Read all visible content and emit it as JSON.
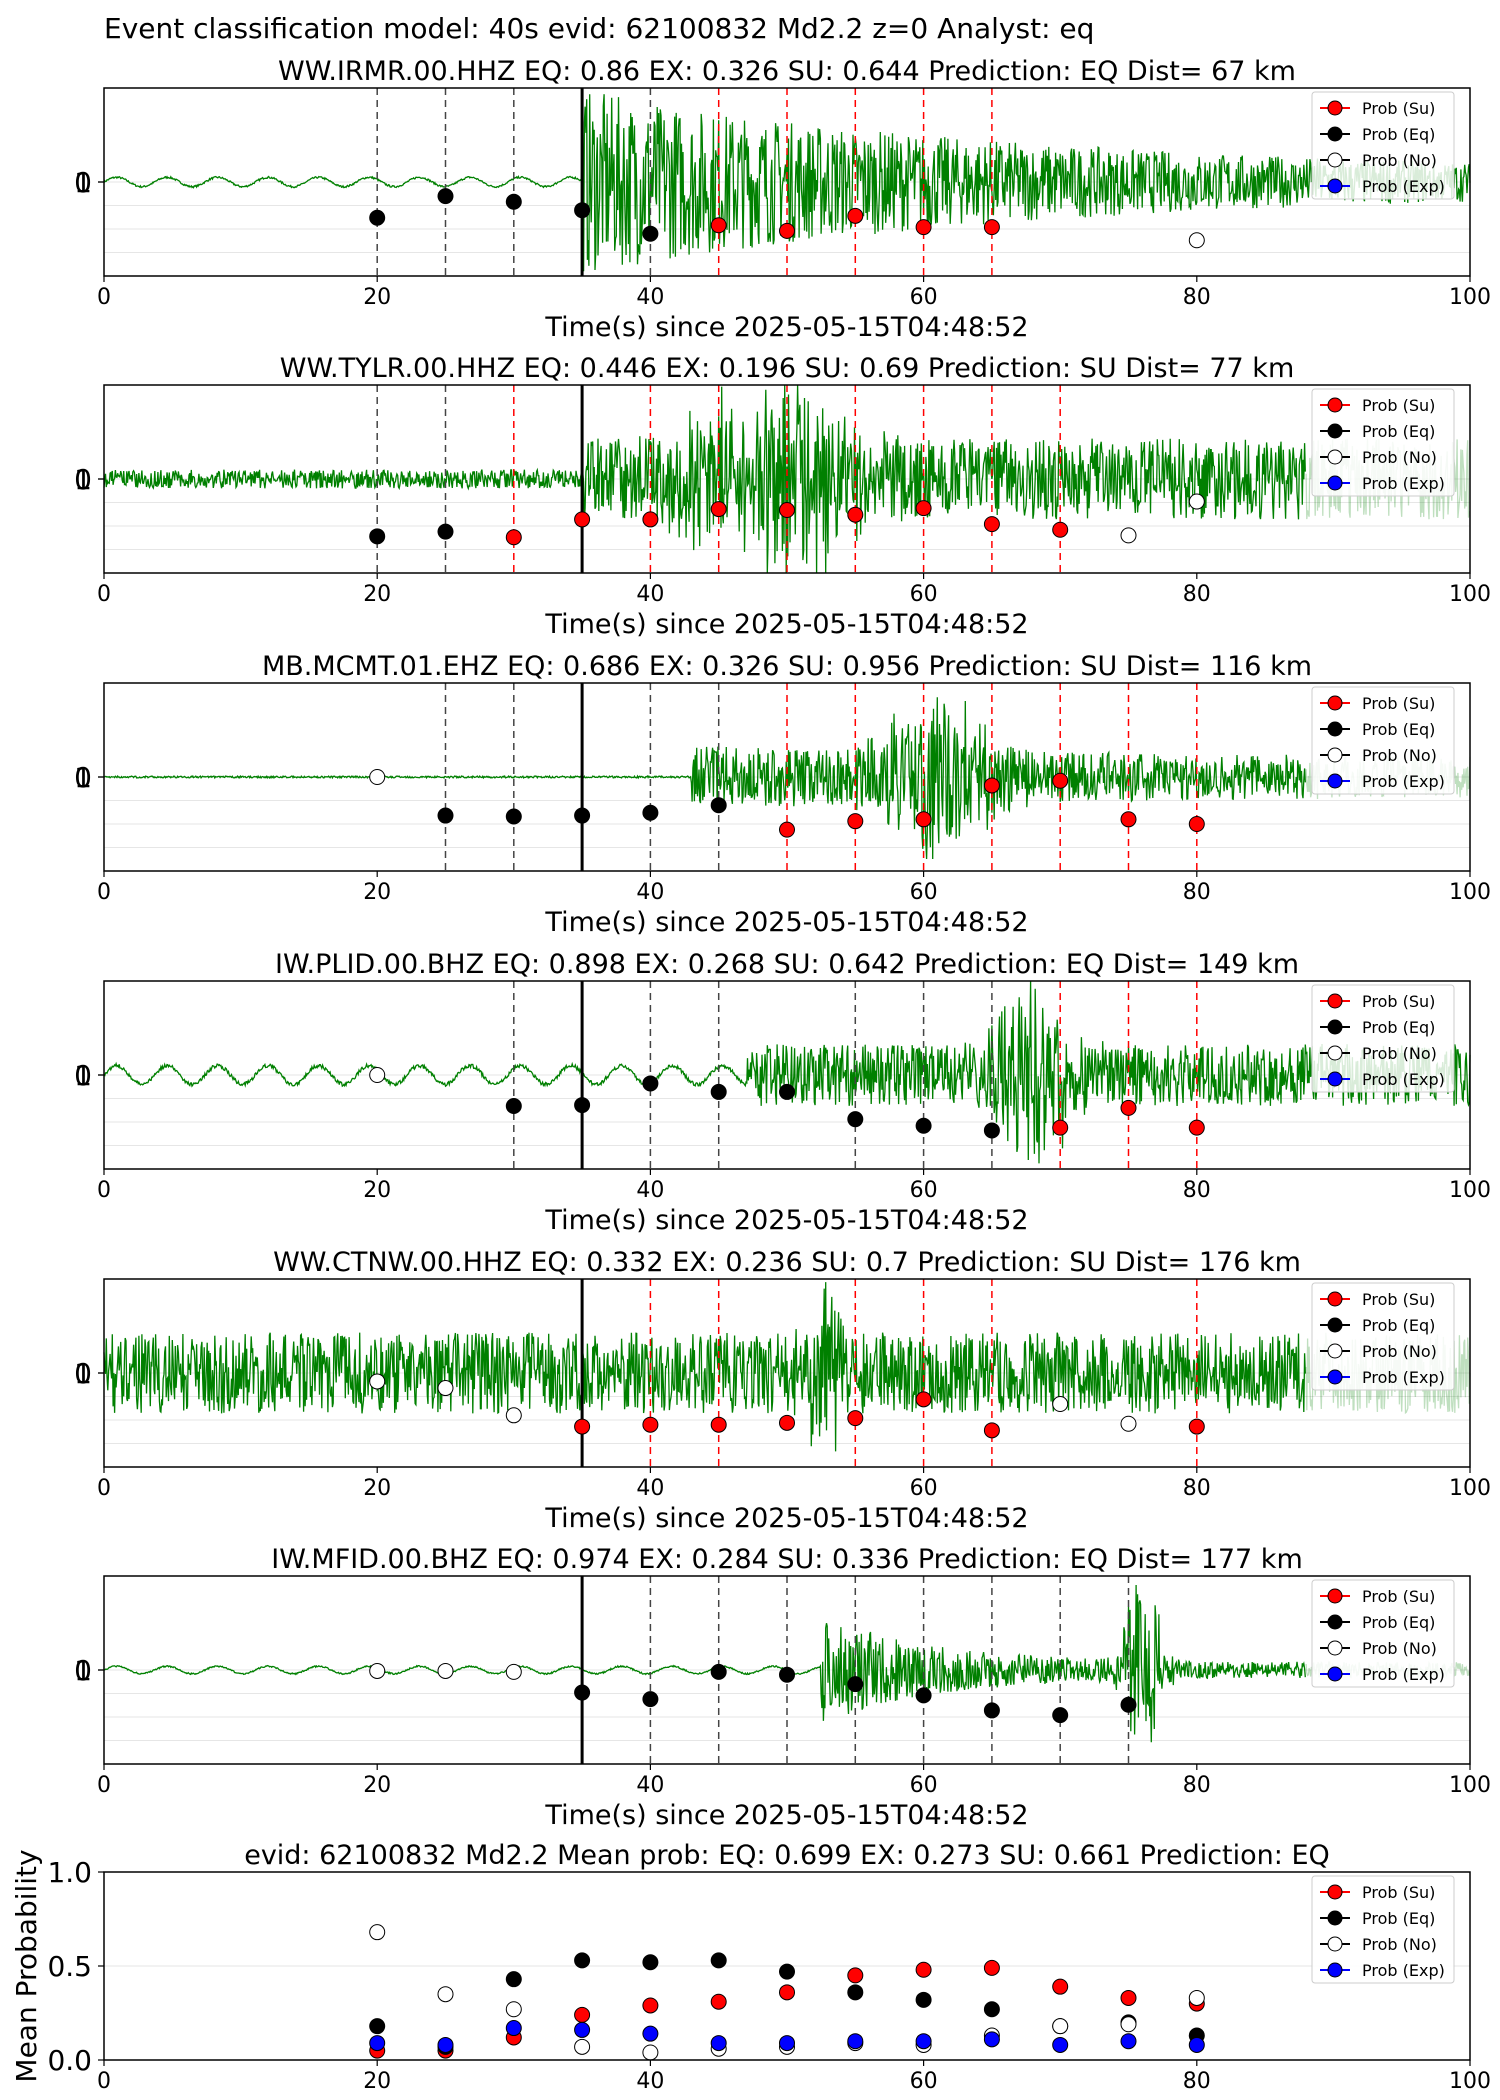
{
  "figure": {
    "suptitle": "Event classification model: 40s evid: 62100832 Md2.2 z=0 Analyst: eq"
  },
  "legend_labels": [
    "Prob (Su)",
    "Prob (Eq)",
    "Prob (No)",
    "Prob (Exp)"
  ],
  "colors": {
    "su": "#ff0000",
    "eq": "#000000",
    "no": "#ffffff",
    "exp": "#0000ff",
    "waveform": "#008000",
    "su_line": "#ff0000",
    "eq_line": "#000000"
  },
  "chart_data": [
    {
      "type": "scatter",
      "station": "WW.IRMR.00.HHZ",
      "title": "WW.IRMR.00.HHZ   EQ: 0.86   EX: 0.326   SU: 0.644   Prediction: EQ    Dist= 67 km",
      "xlabel": "Time(s) since 2025-05-15T04:48:52",
      "xlim": [
        0,
        100
      ],
      "xticks": [
        "0",
        "20",
        "40",
        "60",
        "80",
        "100"
      ],
      "yticks": [
        "0",
        "1"
      ],
      "arrival_time": 35,
      "waveform": {
        "onset": 35,
        "post_amp": 0.9,
        "decay": 0.03,
        "pre_amp": 0.05,
        "pre_style": "smooth",
        "bursts": [],
        "tail_light_from": null
      },
      "windows_eq": [
        20,
        25,
        30,
        35,
        40
      ],
      "windows_su": [
        45,
        50,
        55,
        60,
        65
      ],
      "points": [
        {
          "t": 20,
          "class": "eq",
          "p": 0.62
        },
        {
          "t": 25,
          "class": "eq",
          "p": 0.85
        },
        {
          "t": 30,
          "class": "eq",
          "p": 0.79
        },
        {
          "t": 35,
          "class": "eq",
          "p": 0.7
        },
        {
          "t": 40,
          "class": "eq",
          "p": 0.45
        },
        {
          "t": 45,
          "class": "su",
          "p": 0.54
        },
        {
          "t": 50,
          "class": "su",
          "p": 0.48
        },
        {
          "t": 55,
          "class": "su",
          "p": 0.64
        },
        {
          "t": 60,
          "class": "su",
          "p": 0.52
        },
        {
          "t": 65,
          "class": "su",
          "p": 0.52
        },
        {
          "t": 80,
          "class": "no",
          "p": 0.38
        }
      ]
    },
    {
      "type": "scatter",
      "station": "WW.TYLR.00.HHZ",
      "title": "WW.TYLR.00.HHZ   EQ: 0.446  EX: 0.196  SU: 0.69   Prediction: SU    Dist= 77 km",
      "xlabel": "Time(s) since 2025-05-15T04:48:52",
      "xlim": [
        0,
        100
      ],
      "xticks": [
        "0",
        "20",
        "40",
        "60",
        "80",
        "100"
      ],
      "yticks": [
        "0",
        "1"
      ],
      "arrival_time": 35,
      "waveform": {
        "onset": 35,
        "post_amp": 0.35,
        "decay": 0.0,
        "pre_amp": 0.1,
        "pre_style": "noisy",
        "bursts": [
          {
            "center": 50,
            "width": 5,
            "amp": 0.9
          },
          {
            "center": 44,
            "width": 3,
            "amp": 0.4
          }
        ],
        "tail_light_from": 88
      },
      "windows_eq": [
        20,
        25
      ],
      "windows_su": [
        30,
        40,
        45,
        50,
        55,
        60,
        65,
        70
      ],
      "points": [
        {
          "t": 20,
          "class": "eq",
          "p": 0.39
        },
        {
          "t": 25,
          "class": "eq",
          "p": 0.44
        },
        {
          "t": 30,
          "class": "su",
          "p": 0.38
        },
        {
          "t": 35,
          "class": "su",
          "p": 0.57
        },
        {
          "t": 40,
          "class": "su",
          "p": 0.57
        },
        {
          "t": 45,
          "class": "su",
          "p": 0.68
        },
        {
          "t": 50,
          "class": "su",
          "p": 0.67
        },
        {
          "t": 55,
          "class": "su",
          "p": 0.62
        },
        {
          "t": 60,
          "class": "su",
          "p": 0.69
        },
        {
          "t": 65,
          "class": "su",
          "p": 0.52
        },
        {
          "t": 70,
          "class": "su",
          "p": 0.46
        },
        {
          "t": 75,
          "class": "no",
          "p": 0.4
        },
        {
          "t": 80,
          "class": "no",
          "p": 0.76
        }
      ]
    },
    {
      "type": "scatter",
      "station": "MB.MCMT.01.EHZ",
      "title": "MB.MCMT.01.EHZ   EQ: 0.686  EX: 0.326  SU: 0.956   Prediction: SU    Dist= 116 km",
      "xlabel": "Time(s) since 2025-05-15T04:48:52",
      "xlim": [
        0,
        100
      ],
      "xticks": [
        "0",
        "20",
        "40",
        "60",
        "80",
        "100"
      ],
      "yticks": [
        "0",
        "1"
      ],
      "arrival_time": 35,
      "waveform": {
        "onset": 43,
        "post_amp": 0.25,
        "decay": 0.01,
        "pre_amp": 0.01,
        "pre_style": "flat",
        "bursts": [
          {
            "center": 61,
            "width": 4,
            "amp": 0.8
          }
        ],
        "tail_light_from": 88
      },
      "windows_eq": [
        25,
        30,
        40,
        45
      ],
      "windows_su": [
        50,
        55,
        60,
        65,
        70,
        75,
        80
      ],
      "points": [
        {
          "t": 20,
          "class": "no",
          "p": 1.0
        },
        {
          "t": 25,
          "class": "eq",
          "p": 0.59
        },
        {
          "t": 30,
          "class": "eq",
          "p": 0.58
        },
        {
          "t": 35,
          "class": "eq",
          "p": 0.59
        },
        {
          "t": 40,
          "class": "eq",
          "p": 0.62
        },
        {
          "t": 45,
          "class": "eq",
          "p": 0.7
        },
        {
          "t": 50,
          "class": "su",
          "p": 0.44
        },
        {
          "t": 55,
          "class": "su",
          "p": 0.53
        },
        {
          "t": 60,
          "class": "su",
          "p": 0.55
        },
        {
          "t": 65,
          "class": "su",
          "p": 0.91
        },
        {
          "t": 70,
          "class": "su",
          "p": 0.96
        },
        {
          "t": 75,
          "class": "su",
          "p": 0.55
        },
        {
          "t": 80,
          "class": "su",
          "p": 0.5
        }
      ]
    },
    {
      "type": "scatter",
      "station": "IW.PLID.00.BHZ",
      "title": "IW.PLID.00.BHZ   EQ: 0.898  EX: 0.268  SU: 0.642   Prediction: EQ    Dist= 149 km",
      "xlabel": "Time(s) since 2025-05-15T04:48:52",
      "xlim": [
        0,
        100
      ],
      "xticks": [
        "0",
        "20",
        "40",
        "60",
        "80",
        "100"
      ],
      "yticks": [
        "0",
        "1"
      ],
      "arrival_time": 35,
      "waveform": {
        "onset": 47,
        "post_amp": 0.25,
        "decay": 0.0,
        "pre_amp": 0.1,
        "pre_style": "smooth",
        "bursts": [
          {
            "center": 68,
            "width": 3,
            "amp": 0.9
          }
        ],
        "tail_light_from": null
      },
      "windows_eq": [
        30,
        40,
        45,
        55,
        60,
        65
      ],
      "windows_su": [
        70,
        75,
        80
      ],
      "points": [
        {
          "t": 20,
          "class": "no",
          "p": 1.0
        },
        {
          "t": 30,
          "class": "eq",
          "p": 0.67
        },
        {
          "t": 35,
          "class": "eq",
          "p": 0.68
        },
        {
          "t": 40,
          "class": "eq",
          "p": 0.91
        },
        {
          "t": 45,
          "class": "eq",
          "p": 0.82
        },
        {
          "t": 50,
          "class": "eq",
          "p": 0.82
        },
        {
          "t": 55,
          "class": "eq",
          "p": 0.53
        },
        {
          "t": 60,
          "class": "eq",
          "p": 0.46
        },
        {
          "t": 65,
          "class": "eq",
          "p": 0.41
        },
        {
          "t": 70,
          "class": "su",
          "p": 0.44
        },
        {
          "t": 75,
          "class": "su",
          "p": 0.65
        },
        {
          "t": 80,
          "class": "su",
          "p": 0.44
        }
      ]
    },
    {
      "type": "scatter",
      "station": "WW.CTNW.00.HHZ",
      "title": "WW.CTNW.00.HHZ   EQ: 0.332  EX: 0.236  SU: 0.7   Prediction: SU    Dist= 176 km",
      "xlabel": "Time(s) since 2025-05-15T04:48:52",
      "xlim": [
        0,
        100
      ],
      "xticks": [
        "0",
        "20",
        "40",
        "60",
        "80",
        "100"
      ],
      "yticks": [
        "0",
        "1"
      ],
      "arrival_time": 35,
      "waveform": {
        "onset": 0,
        "post_amp": 0.35,
        "decay": 0.0,
        "pre_amp": 0.35,
        "pre_style": "noisy",
        "bursts": [
          {
            "center": 52.5,
            "width": 1.2,
            "amp": 1.0
          }
        ],
        "tail_light_from": 88
      },
      "windows_eq": [],
      "windows_su": [
        40,
        45,
        55,
        60,
        65,
        80
      ],
      "points": [
        {
          "t": 20,
          "class": "no",
          "p": 0.91
        },
        {
          "t": 25,
          "class": "no",
          "p": 0.84
        },
        {
          "t": 30,
          "class": "no",
          "p": 0.55
        },
        {
          "t": 35,
          "class": "su",
          "p": 0.43
        },
        {
          "t": 40,
          "class": "su",
          "p": 0.45
        },
        {
          "t": 45,
          "class": "su",
          "p": 0.45
        },
        {
          "t": 50,
          "class": "su",
          "p": 0.47
        },
        {
          "t": 55,
          "class": "su",
          "p": 0.52
        },
        {
          "t": 60,
          "class": "su",
          "p": 0.72
        },
        {
          "t": 65,
          "class": "su",
          "p": 0.39
        },
        {
          "t": 70,
          "class": "no",
          "p": 0.67
        },
        {
          "t": 75,
          "class": "no",
          "p": 0.46
        },
        {
          "t": 80,
          "class": "su",
          "p": 0.43
        }
      ]
    },
    {
      "type": "scatter",
      "station": "IW.MFID.00.BHZ",
      "title": "IW.MFID.00.BHZ   EQ: 0.974  EX: 0.284  SU: 0.336   Prediction: EQ    Dist= 177 km",
      "xlabel": "Time(s) since 2025-05-15T04:48:52",
      "xlim": [
        0,
        100
      ],
      "xticks": [
        "0",
        "20",
        "40",
        "60",
        "80",
        "100"
      ],
      "yticks": [
        "0",
        "1"
      ],
      "arrival_time": 35,
      "waveform": {
        "onset": 52.5,
        "post_amp": 0.5,
        "decay": 0.12,
        "pre_amp": 0.04,
        "pre_style": "smooth",
        "bursts": [
          {
            "center": 76,
            "width": 1.5,
            "amp": 1.0
          }
        ],
        "tail_light_from": 88
      },
      "windows_eq": [
        40,
        45,
        50,
        55,
        60,
        65,
        70,
        75
      ],
      "windows_su": [],
      "points": [
        {
          "t": 20,
          "class": "no",
          "p": 0.99
        },
        {
          "t": 25,
          "class": "no",
          "p": 0.99
        },
        {
          "t": 30,
          "class": "no",
          "p": 0.98
        },
        {
          "t": 35,
          "class": "eq",
          "p": 0.76
        },
        {
          "t": 40,
          "class": "eq",
          "p": 0.69
        },
        {
          "t": 45,
          "class": "eq",
          "p": 0.98
        },
        {
          "t": 50,
          "class": "eq",
          "p": 0.95
        },
        {
          "t": 55,
          "class": "eq",
          "p": 0.85
        },
        {
          "t": 60,
          "class": "eq",
          "p": 0.73
        },
        {
          "t": 65,
          "class": "eq",
          "p": 0.57
        },
        {
          "t": 70,
          "class": "eq",
          "p": 0.52
        },
        {
          "t": 75,
          "class": "eq",
          "p": 0.63
        }
      ]
    },
    {
      "type": "scatter",
      "title": "evid: 62100832  Md2.2   Mean prob:   EQ: 0.699  EX: 0.273  SU: 0.661   Prediction: EQ",
      "ylabel": "Mean Probability",
      "xlim": [
        0,
        100
      ],
      "ylim": [
        0,
        1
      ],
      "xticks": [
        "0",
        "20",
        "40",
        "60",
        "80",
        "100"
      ],
      "yticks": [
        "0.0",
        "0.5",
        "1.0"
      ],
      "x": [
        20,
        25,
        30,
        35,
        40,
        45,
        50,
        55,
        60,
        65,
        70,
        75,
        80
      ],
      "series": [
        {
          "name": "Prob (Su)",
          "key": "su",
          "values": [
            0.05,
            0.05,
            0.12,
            0.24,
            0.29,
            0.31,
            0.36,
            0.45,
            0.48,
            0.49,
            0.39,
            0.33,
            0.3
          ]
        },
        {
          "name": "Prob (Eq)",
          "key": "eq",
          "values": [
            0.18,
            0.07,
            0.43,
            0.53,
            0.52,
            0.53,
            0.47,
            0.36,
            0.32,
            0.27,
            0.18,
            0.2,
            0.13
          ]
        },
        {
          "name": "Prob (No)",
          "key": "no",
          "values": [
            0.68,
            0.35,
            0.27,
            0.07,
            0.04,
            0.06,
            0.07,
            0.09,
            0.08,
            0.13,
            0.18,
            0.19,
            0.33
          ]
        },
        {
          "name": "Prob (Exp)",
          "key": "exp",
          "values": [
            0.09,
            0.08,
            0.17,
            0.16,
            0.14,
            0.09,
            0.09,
            0.1,
            0.1,
            0.11,
            0.08,
            0.1,
            0.08
          ]
        }
      ]
    }
  ]
}
